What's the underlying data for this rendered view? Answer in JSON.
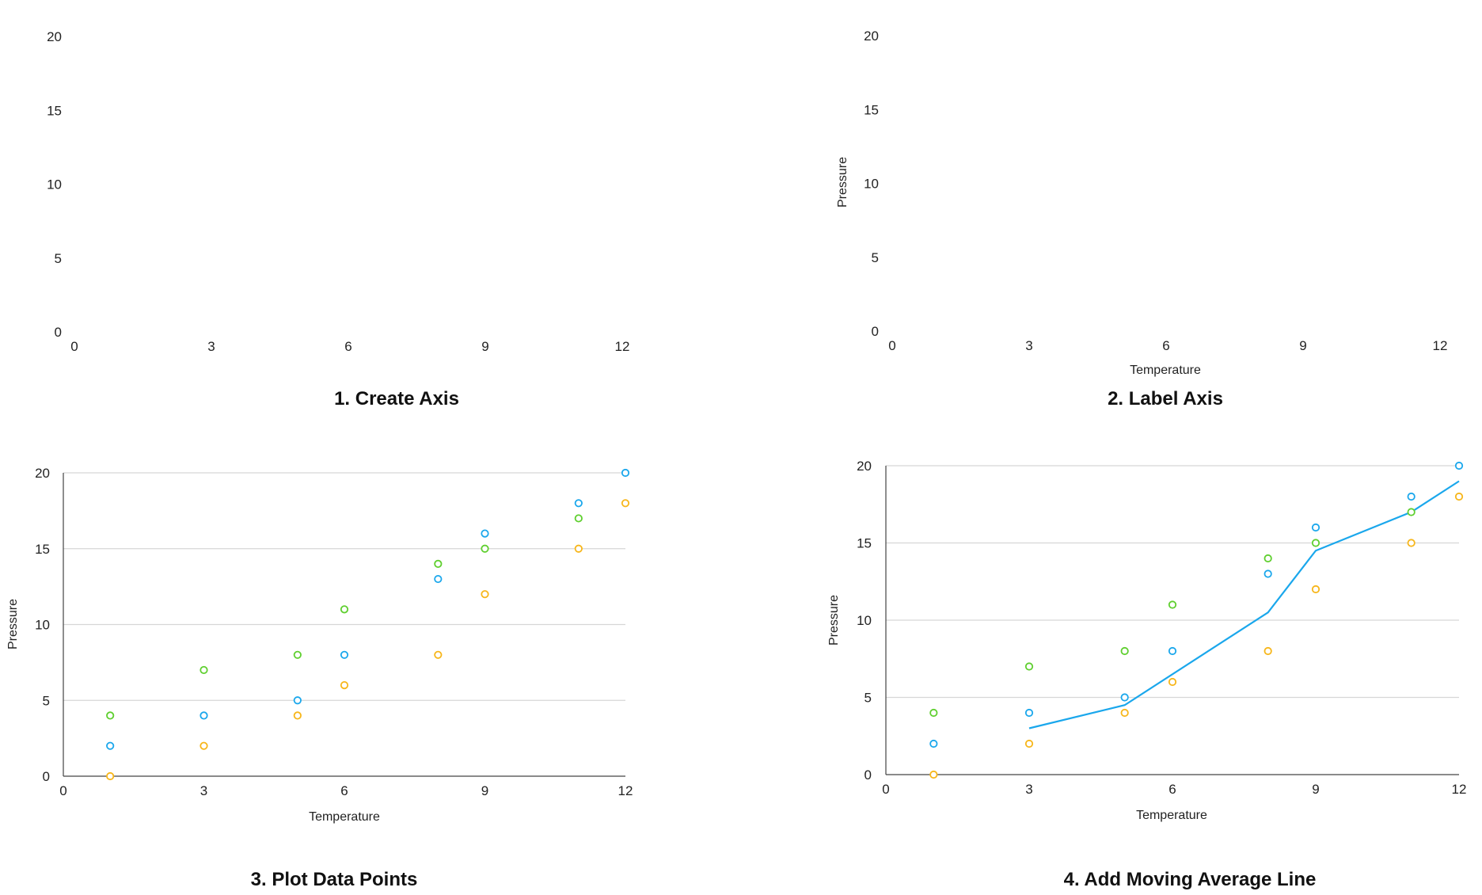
{
  "chart_data": [
    {
      "type": "scatter",
      "caption": "1. Create Axis",
      "xlabel": "",
      "ylabel": "",
      "xlim": [
        0,
        12
      ],
      "ylim": [
        0,
        20
      ],
      "x_ticks": [
        "0",
        "3",
        "6",
        "9",
        "12"
      ],
      "y_ticks": [
        "0",
        "5",
        "10",
        "15",
        "20"
      ],
      "grid": false,
      "series": []
    },
    {
      "type": "scatter",
      "caption": "2. Label Axis",
      "xlabel": "Temperature",
      "ylabel": "Pressure",
      "xlim": [
        0,
        12
      ],
      "ylim": [
        0,
        20
      ],
      "x_ticks": [
        "0",
        "3",
        "6",
        "9",
        "12"
      ],
      "y_ticks": [
        "0",
        "5",
        "10",
        "15",
        "20"
      ],
      "grid": false,
      "series": []
    },
    {
      "type": "scatter",
      "caption": "3. Plot Data Points",
      "xlabel": "Temperature",
      "ylabel": "Pressure",
      "xlim": [
        0,
        12
      ],
      "ylim": [
        0,
        20
      ],
      "x_ticks": [
        "0",
        "3",
        "6",
        "9",
        "12"
      ],
      "y_ticks": [
        "0",
        "5",
        "10",
        "15",
        "20"
      ],
      "grid": true,
      "series": [
        {
          "color": "#1aa7ec",
          "points": [
            [
              1,
              2
            ],
            [
              3,
              4
            ],
            [
              5,
              5
            ],
            [
              6,
              8
            ],
            [
              8,
              13
            ],
            [
              9,
              16
            ],
            [
              11,
              18
            ],
            [
              12,
              20
            ]
          ]
        },
        {
          "color": "#5fcf2f",
          "points": [
            [
              1,
              4
            ],
            [
              3,
              7
            ],
            [
              5,
              8
            ],
            [
              6,
              11
            ],
            [
              8,
              14
            ],
            [
              9,
              15
            ],
            [
              11,
              17
            ]
          ]
        },
        {
          "color": "#f7b61a",
          "points": [
            [
              1,
              0
            ],
            [
              3,
              2
            ],
            [
              5,
              4
            ],
            [
              6,
              6
            ],
            [
              8,
              8
            ],
            [
              9,
              12
            ],
            [
              11,
              15
            ],
            [
              12,
              18
            ]
          ]
        }
      ]
    },
    {
      "type": "scatter",
      "caption": "4. Add Moving Average Line",
      "xlabel": "Temperature",
      "ylabel": "Pressure",
      "xlim": [
        0,
        12
      ],
      "ylim": [
        0,
        20
      ],
      "x_ticks": [
        "0",
        "3",
        "6",
        "9",
        "12"
      ],
      "y_ticks": [
        "0",
        "5",
        "10",
        "15",
        "20"
      ],
      "grid": true,
      "series": [
        {
          "color": "#1aa7ec",
          "points": [
            [
              1,
              2
            ],
            [
              3,
              4
            ],
            [
              5,
              5
            ],
            [
              6,
              8
            ],
            [
              8,
              13
            ],
            [
              9,
              16
            ],
            [
              11,
              18
            ],
            [
              12,
              20
            ]
          ]
        },
        {
          "color": "#5fcf2f",
          "points": [
            [
              1,
              4
            ],
            [
              3,
              7
            ],
            [
              5,
              8
            ],
            [
              6,
              11
            ],
            [
              8,
              14
            ],
            [
              9,
              15
            ],
            [
              11,
              17
            ]
          ]
        },
        {
          "color": "#f7b61a",
          "points": [
            [
              1,
              0
            ],
            [
              3,
              2
            ],
            [
              5,
              4
            ],
            [
              6,
              6
            ],
            [
              8,
              8
            ],
            [
              9,
              12
            ],
            [
              11,
              15
            ],
            [
              12,
              18
            ]
          ]
        }
      ],
      "moving_average": {
        "color": "#1aa7ec",
        "points": [
          [
            3,
            3
          ],
          [
            5,
            4.5
          ],
          [
            8,
            10.5
          ],
          [
            9,
            14.5
          ],
          [
            11,
            17
          ],
          [
            12,
            19
          ]
        ]
      }
    }
  ]
}
